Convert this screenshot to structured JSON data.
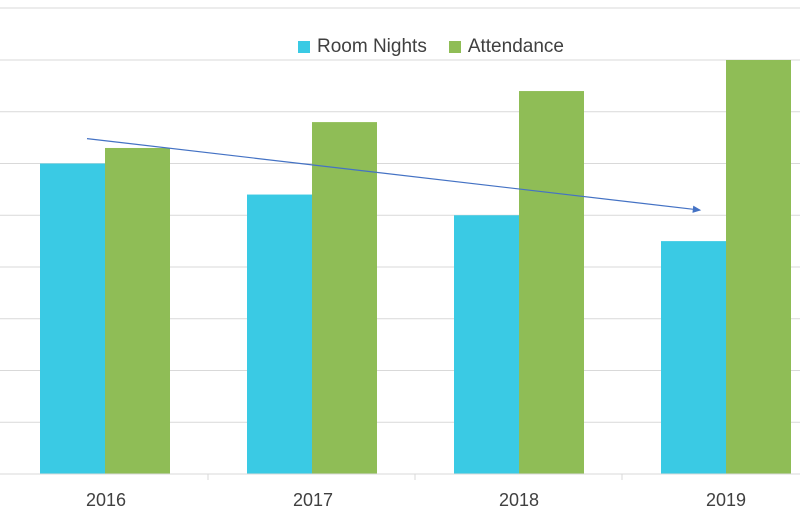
{
  "chart_data": {
    "type": "bar",
    "title": "",
    "xlabel": "",
    "ylabel": "",
    "categories": [
      "2016",
      "2017",
      "2018",
      "2019"
    ],
    "series": [
      {
        "name": "Room Nights",
        "values": [
          6.0,
          5.4,
          5.0,
          4.5
        ],
        "color": "#3ACAE4"
      },
      {
        "name": "Attendance",
        "values": [
          6.3,
          6.8,
          7.4,
          8.0
        ],
        "color": "#8FBD56"
      }
    ],
    "ylim": [
      0,
      8
    ],
    "grid": true,
    "legend_position": "top",
    "annotations": [
      {
        "type": "arrow",
        "from": {
          "category": "2016",
          "value": 6.5
        },
        "to": {
          "category": "2019",
          "value": 5.1
        },
        "color": "#4472C4"
      }
    ]
  }
}
